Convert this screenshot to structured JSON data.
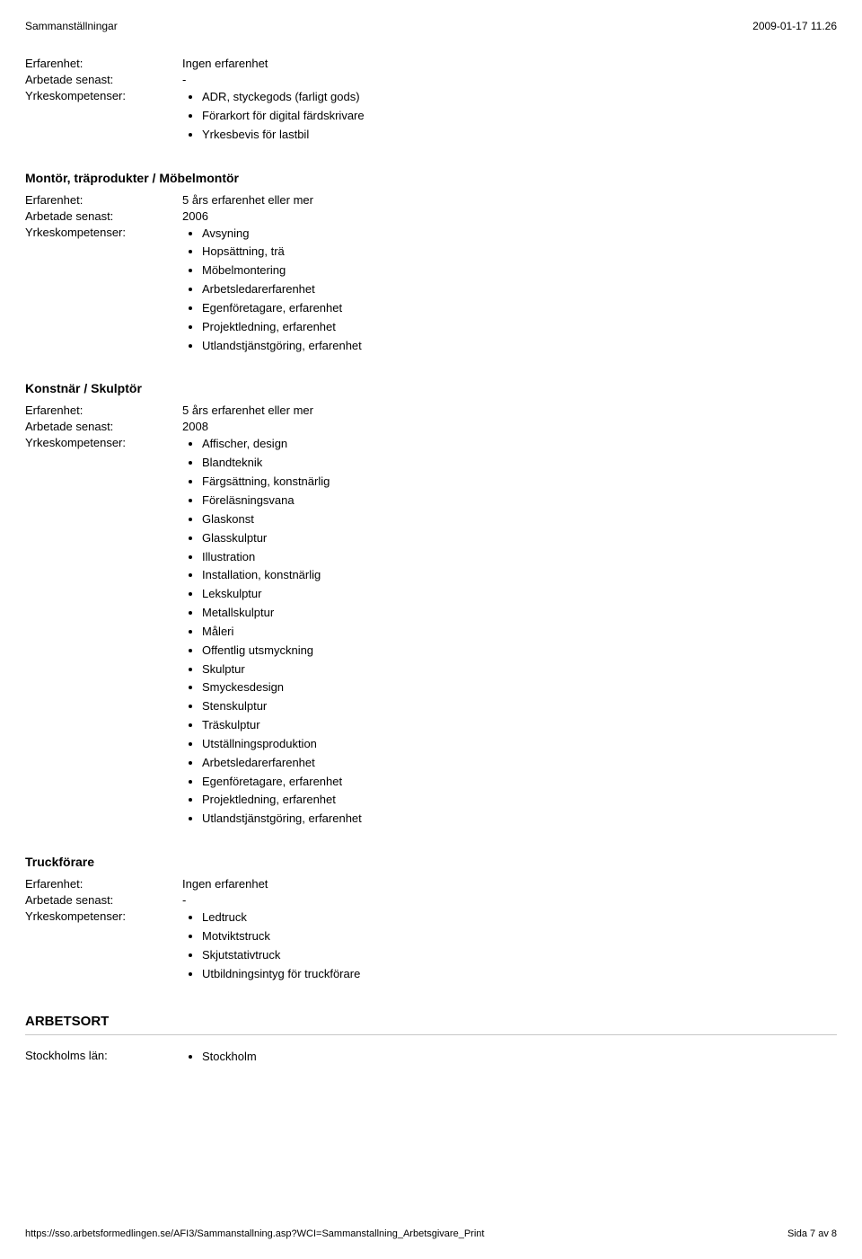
{
  "header": {
    "left": "Sammanställningar",
    "right": "2009-01-17 11.26"
  },
  "sections": [
    {
      "title": null,
      "fields": {
        "erfarenhet_label": "Erfarenhet:",
        "erfarenhet_value": "Ingen erfarenhet",
        "senast_label": "Arbetade senast:",
        "senast_value": "-",
        "kompetenser_label": "Yrkeskompetenser:",
        "kompetenser": [
          "ADR, styckegods (farligt gods)",
          "Förarkort för digital färdskrivare",
          "Yrkesbevis för lastbil"
        ]
      }
    },
    {
      "title": "Montör, träprodukter / Möbelmontör",
      "fields": {
        "erfarenhet_label": "Erfarenhet:",
        "erfarenhet_value": "5 års erfarenhet eller mer",
        "senast_label": "Arbetade senast:",
        "senast_value": "2006",
        "kompetenser_label": "Yrkeskompetenser:",
        "kompetenser": [
          "Avsyning",
          "Hopsättning, trä",
          "Möbelmontering",
          "Arbetsledarerfarenhet",
          "Egenföretagare, erfarenhet",
          "Projektledning, erfarenhet",
          "Utlandstjänstgöring, erfarenhet"
        ]
      }
    },
    {
      "title": "Konstnär / Skulptör",
      "fields": {
        "erfarenhet_label": "Erfarenhet:",
        "erfarenhet_value": "5 års erfarenhet eller mer",
        "senast_label": "Arbetade senast:",
        "senast_value": "2008",
        "kompetenser_label": "Yrkeskompetenser:",
        "kompetenser": [
          "Affischer, design",
          "Blandteknik",
          "Färgsättning, konstnärlig",
          "Föreläsningsvana",
          "Glaskonst",
          "Glasskulptur",
          "Illustration",
          "Installation, konstnärlig",
          "Lekskulptur",
          "Metallskulptur",
          "Måleri",
          "Offentlig utsmyckning",
          "Skulptur",
          "Smyckesdesign",
          "Stenskulptur",
          "Träskulptur",
          "Utställningsproduktion",
          "Arbetsledarerfarenhet",
          "Egenföretagare, erfarenhet",
          "Projektledning, erfarenhet",
          "Utlandstjänstgöring, erfarenhet"
        ]
      }
    },
    {
      "title": "Truckförare",
      "fields": {
        "erfarenhet_label": "Erfarenhet:",
        "erfarenhet_value": "Ingen erfarenhet",
        "senast_label": "Arbetade senast:",
        "senast_value": "-",
        "kompetenser_label": "Yrkeskompetenser:",
        "kompetenser": [
          "Ledtruck",
          "Motviktstruck",
          "Skjutstativtruck",
          "Utbildningsintyg för truckförare"
        ]
      }
    }
  ],
  "arbetsort": {
    "heading": "ARBETSORT",
    "label": "Stockholms län:",
    "items": [
      "Stockholm"
    ]
  },
  "footer": {
    "left": "https://sso.arbetsformedlingen.se/AFI3/Sammanstallning.asp?WCI=Sammanstallning_Arbetsgivare_Print",
    "right": "Sida 7 av 8"
  }
}
